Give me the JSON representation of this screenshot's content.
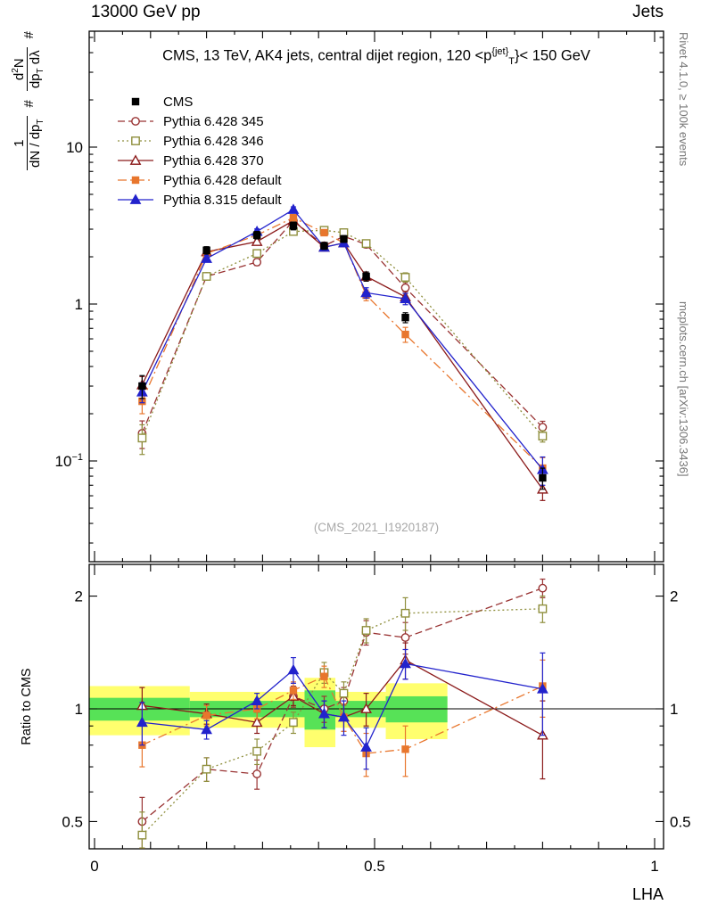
{
  "header": {
    "left": "13000 GeV pp",
    "right": "Jets"
  },
  "title": {
    "a": "CMS, 13 TeV, AK4 jets, central dijet region, 120 <",
    "p": "p",
    "sup": "{jet}",
    "sub": "T",
    "b": "}< 150 GeV"
  },
  "ylabel": {
    "hash1": "#",
    "f1_num": "1",
    "f1_den_a": "dN / dp",
    "f1_den_sub": "T",
    "hash2": "#",
    "f2_num_a": "d",
    "f2_num_sup": "2",
    "f2_num_b": "N",
    "f2_den_a": "dp",
    "f2_den_sub": "T",
    "f2_den_b": " dλ"
  },
  "side_notes": {
    "rivet": "Rivet 4.1.0, ≥ 100k events",
    "mcplots": "mcplots.cern.ch [arXiv:1306.3436]",
    "watermark": "(CMS_2021_I1920187)"
  },
  "axes": {
    "x_label": "LHA",
    "x_tick_labels": [
      {
        "v": 0,
        "t": "0"
      },
      {
        "v": 0.5,
        "t": "0.5"
      },
      {
        "v": 1,
        "t": "1"
      }
    ],
    "main_y_tick_labels": [
      {
        "v": 10,
        "t": "10"
      },
      {
        "v": 1,
        "t": "1"
      },
      {
        "v": 0.1,
        "t": "10",
        "sup": "−1"
      }
    ],
    "ratio_y_tick_labels": [
      {
        "v": 2,
        "t": "2"
      },
      {
        "v": 1,
        "t": "1"
      },
      {
        "v": 0.5,
        "t": "0.5"
      }
    ]
  },
  "chart_data": {
    "type": "line",
    "title": "CMS, 13 TeV, AK4 jets, central dijet region, 120 < pT(jet) < 150 GeV",
    "xlabel": "LHA",
    "xlim": [
      0,
      1
    ],
    "main_yscale": "log",
    "main_ylim": [
      0.023,
      55
    ],
    "x": [
      0.085,
      0.2,
      0.29,
      0.355,
      0.41,
      0.445,
      0.485,
      0.555,
      0.8
    ],
    "series": [
      {
        "name": "CMS",
        "color": "#000000",
        "marker": "square-filled",
        "line": "none",
        "values": [
          0.3,
          2.2,
          2.75,
          3.15,
          2.35,
          2.6,
          1.5,
          0.82,
          0.078
        ],
        "yerr": [
          0.05,
          0.12,
          0.15,
          0.18,
          0.12,
          0.13,
          0.1,
          0.06,
          0.012
        ]
      },
      {
        "name": "Pythia 6.428 345",
        "color": "#993333",
        "marker": "circle-open",
        "line": "dashed",
        "values": [
          0.15,
          1.5,
          1.85,
          3.4,
          2.35,
          2.7,
          2.4,
          1.27,
          0.164
        ],
        "yerr": [
          0.03,
          0.07,
          0.09,
          0.15,
          0.12,
          0.12,
          0.12,
          0.1,
          0.015
        ],
        "ratio": [
          0.5,
          0.69,
          0.67,
          1.08,
          1.0,
          1.05,
          1.6,
          1.55,
          2.1
        ],
        "ratio_err": [
          0.08,
          0.05,
          0.06,
          0.07,
          0.08,
          0.09,
          0.12,
          0.15,
          0.12
        ]
      },
      {
        "name": "Pythia 6.428 346",
        "color": "#8f8f3d",
        "marker": "square-open",
        "line": "dotted",
        "values": [
          0.14,
          1.5,
          2.1,
          2.9,
          2.95,
          2.85,
          2.43,
          1.48,
          0.144
        ],
        "yerr": [
          0.03,
          0.07,
          0.09,
          0.12,
          0.12,
          0.12,
          0.12,
          0.1,
          0.012
        ],
        "ratio": [
          0.46,
          0.69,
          0.77,
          0.92,
          1.25,
          1.1,
          1.62,
          1.8,
          1.85
        ],
        "ratio_err": [
          0.07,
          0.05,
          0.06,
          0.06,
          0.08,
          0.08,
          0.12,
          0.18,
          0.15
        ]
      },
      {
        "name": "Pythia 6.428 370",
        "color": "#8b1a1a",
        "marker": "triangle-open",
        "line": "solid",
        "values": [
          0.305,
          2.15,
          2.5,
          3.4,
          2.3,
          2.45,
          1.5,
          1.11,
          0.066
        ],
        "yerr": [
          0.04,
          0.09,
          0.11,
          0.15,
          0.12,
          0.12,
          0.1,
          0.09,
          0.01
        ],
        "ratio": [
          1.02,
          0.97,
          0.92,
          1.08,
          0.97,
          0.95,
          1.0,
          1.35,
          0.85
        ],
        "ratio_err": [
          0.12,
          0.06,
          0.06,
          0.06,
          0.08,
          0.08,
          0.1,
          0.15,
          0.2
        ]
      },
      {
        "name": "Pythia 6.428 default",
        "color": "#e8762d",
        "marker": "square-filled",
        "line": "dashdot",
        "values": [
          0.24,
          2.1,
          2.75,
          3.55,
          2.85,
          2.45,
          1.14,
          0.64,
          0.09
        ],
        "yerr": [
          0.04,
          0.09,
          0.11,
          0.15,
          0.12,
          0.12,
          0.09,
          0.07,
          0.015
        ],
        "ratio": [
          0.8,
          0.96,
          1.0,
          1.12,
          1.22,
          0.95,
          0.76,
          0.78,
          1.15
        ],
        "ratio_err": [
          0.1,
          0.06,
          0.06,
          0.06,
          0.08,
          0.08,
          0.1,
          0.12,
          0.2
        ]
      },
      {
        "name": "Pythia 8.315 default",
        "color": "#2222cc",
        "marker": "triangle-filled",
        "line": "solid",
        "values": [
          0.275,
          1.95,
          2.9,
          4.0,
          2.3,
          2.45,
          1.18,
          1.08,
          0.088
        ],
        "yerr": [
          0.04,
          0.09,
          0.11,
          0.16,
          0.12,
          0.12,
          0.09,
          0.09,
          0.018
        ],
        "ratio": [
          0.92,
          0.88,
          1.05,
          1.27,
          0.97,
          0.95,
          0.79,
          1.32,
          1.13
        ],
        "ratio_err": [
          0.12,
          0.05,
          0.05,
          0.1,
          0.08,
          0.1,
          0.1,
          0.12,
          0.28
        ]
      }
    ],
    "ratio_panel": {
      "ylabel": "Ratio to CMS",
      "yscale": "log",
      "ylim": [
        0.42,
        2.43
      ],
      "reference_line": 1,
      "band_colors": {
        "yellow": "#ffff6e",
        "green": "#57e257"
      },
      "yellow_band": [
        {
          "x0": 0,
          "x1": 0.17,
          "lo": 0.85,
          "hi": 1.15
        },
        {
          "x0": 0.17,
          "x1": 0.375,
          "lo": 0.89,
          "hi": 1.11
        },
        {
          "x0": 0.375,
          "x1": 0.43,
          "lo": 0.79,
          "hi": 1.21
        },
        {
          "x0": 0.43,
          "x1": 0.52,
          "lo": 0.89,
          "hi": 1.11
        },
        {
          "x0": 0.52,
          "x1": 0.63,
          "lo": 0.83,
          "hi": 1.17
        }
      ],
      "green_band": [
        {
          "x0": 0,
          "x1": 0.17,
          "lo": 0.93,
          "hi": 1.07
        },
        {
          "x0": 0.17,
          "x1": 0.375,
          "lo": 0.95,
          "hi": 1.05
        },
        {
          "x0": 0.375,
          "x1": 0.43,
          "lo": 0.88,
          "hi": 1.12
        },
        {
          "x0": 0.43,
          "x1": 0.52,
          "lo": 0.95,
          "hi": 1.05
        },
        {
          "x0": 0.52,
          "x1": 0.63,
          "lo": 0.92,
          "hi": 1.08
        }
      ]
    }
  }
}
